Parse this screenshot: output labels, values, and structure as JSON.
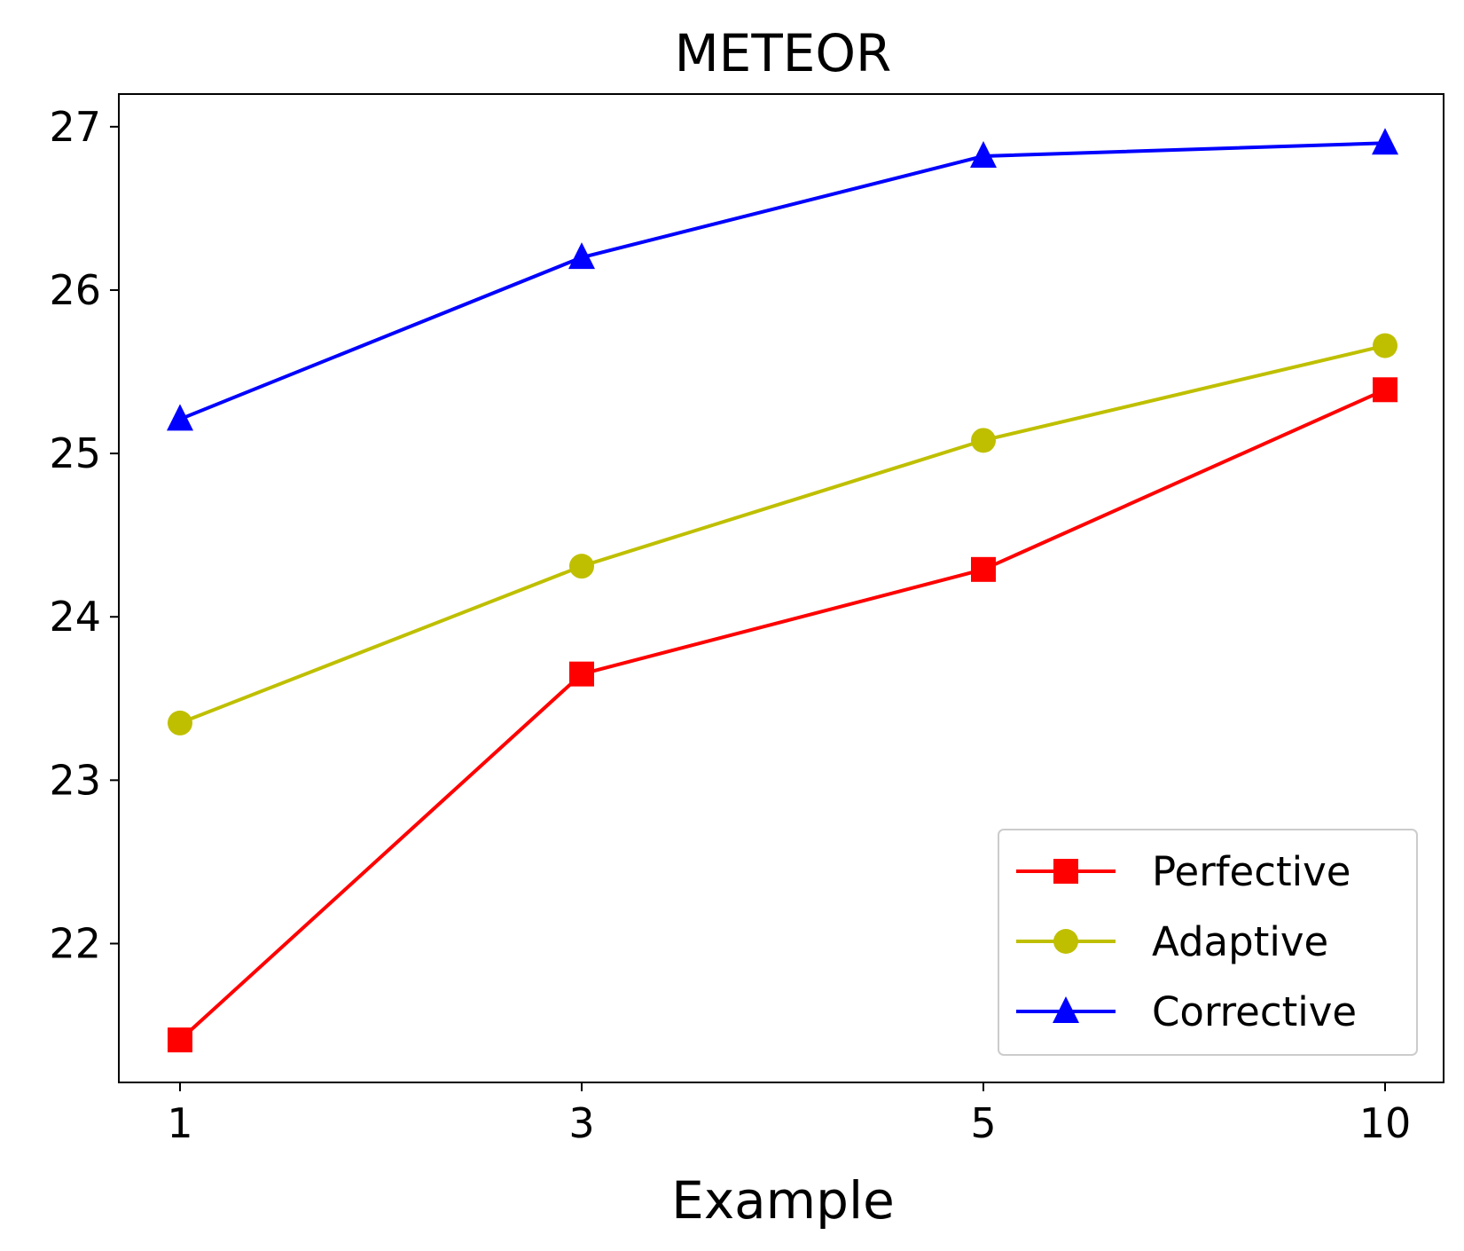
{
  "chart_data": {
    "type": "line",
    "title": "METEOR",
    "xlabel": "Example",
    "ylabel": "",
    "categories": [
      "1",
      "3",
      "5",
      "10"
    ],
    "ylim": [
      21.15,
      27.2
    ],
    "yticks": [
      22,
      23,
      24,
      25,
      26,
      27
    ],
    "grid": false,
    "legend_position": "lower-right",
    "series": [
      {
        "name": "Perfective",
        "color": "#ff0000",
        "marker": "square",
        "values": [
          21.41,
          23.65,
          24.29,
          25.39
        ]
      },
      {
        "name": "Adaptive",
        "color": "#bfbf00",
        "marker": "circle",
        "values": [
          23.35,
          24.31,
          25.08,
          25.66
        ]
      },
      {
        "name": "Corrective",
        "color": "#0000ff",
        "marker": "triangle",
        "values": [
          25.21,
          26.2,
          26.82,
          26.9
        ]
      }
    ]
  }
}
